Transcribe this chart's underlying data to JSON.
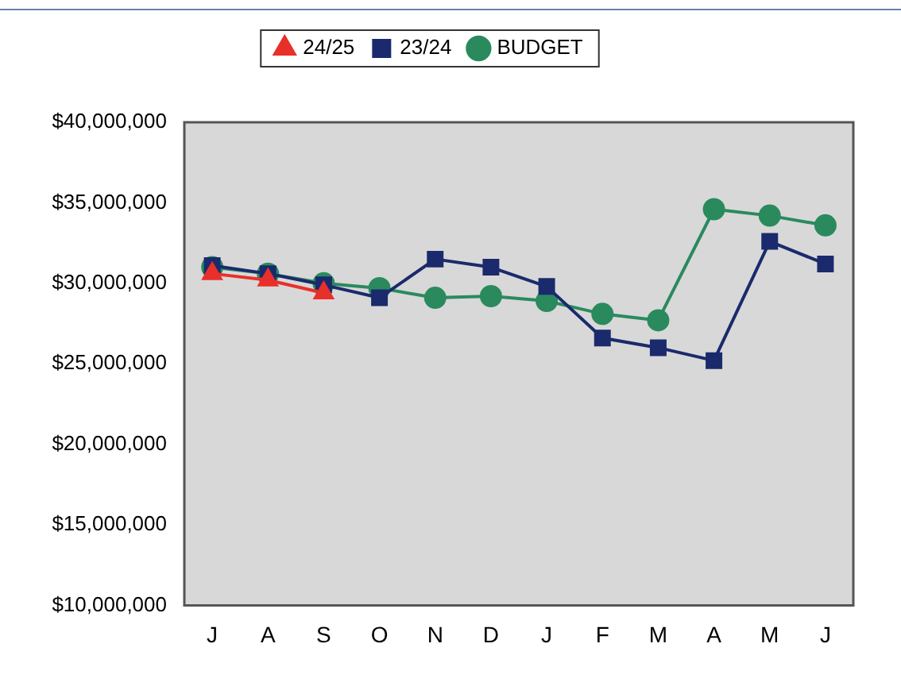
{
  "chart_data": {
    "type": "line",
    "categories": [
      "J",
      "A",
      "S",
      "O",
      "N",
      "D",
      "J",
      "F",
      "M",
      "A",
      "M",
      "J"
    ],
    "series": [
      {
        "name": "24/25",
        "color": "#e8302a",
        "marker": "triangle",
        "values": [
          30600000,
          30200000,
          29400000,
          null,
          null,
          null,
          null,
          null,
          null,
          null,
          null,
          null
        ]
      },
      {
        "name": "23/24",
        "color": "#1a2a6c",
        "marker": "square",
        "values": [
          31100000,
          30600000,
          29900000,
          29100000,
          31500000,
          31000000,
          29800000,
          26600000,
          26000000,
          25200000,
          32600000,
          31200000
        ]
      },
      {
        "name": "BUDGET",
        "color": "#2a8a5e",
        "marker": "circle",
        "values": [
          31000000,
          30600000,
          30000000,
          29700000,
          29100000,
          29200000,
          28900000,
          28100000,
          27700000,
          34600000,
          34200000,
          33600000
        ]
      }
    ],
    "ylim": [
      10000000,
      40000000
    ],
    "yticks": [
      {
        "value": 10000000,
        "label": "$10,000,000"
      },
      {
        "value": 15000000,
        "label": "$15,000,000"
      },
      {
        "value": 20000000,
        "label": "$20,000,000"
      },
      {
        "value": 25000000,
        "label": "$25,000,000"
      },
      {
        "value": 30000000,
        "label": "$30,000,000"
      },
      {
        "value": 35000000,
        "label": "$35,000,000"
      },
      {
        "value": 40000000,
        "label": "$40,000,000"
      }
    ],
    "grid": false,
    "legend": "top"
  }
}
